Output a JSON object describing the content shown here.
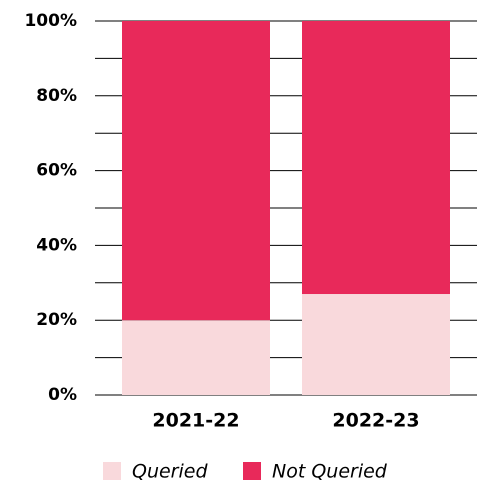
{
  "chart_data": {
    "type": "stacked_bar",
    "categories": [
      "2021-22",
      "2022-23"
    ],
    "series": [
      {
        "name": "Queried",
        "color": "#f9d9dc",
        "values": [
          20,
          27
        ]
      },
      {
        "name": "Not Queried",
        "color": "#e8295a",
        "values": [
          80,
          73
        ]
      }
    ],
    "ylim": [
      0,
      100
    ],
    "yticks": [
      {
        "value": 0,
        "label": "0%"
      },
      {
        "value": 20,
        "label": "20%"
      },
      {
        "value": 40,
        "label": "40%"
      },
      {
        "value": 60,
        "label": "60%"
      },
      {
        "value": 80,
        "label": "80%"
      },
      {
        "value": 100,
        "label": "100%"
      }
    ],
    "yminorticks": [
      10,
      30,
      50,
      70,
      90
    ],
    "grid": true,
    "legend": "bottom"
  }
}
